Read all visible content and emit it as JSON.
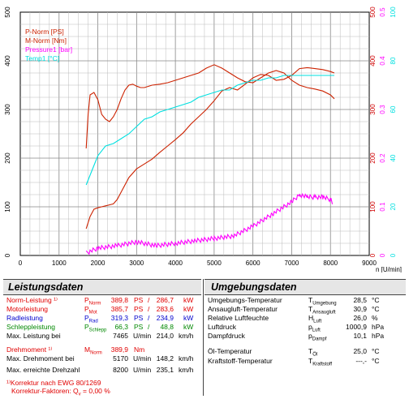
{
  "chart_data": {
    "type": "line",
    "xlim": [
      0,
      9000
    ],
    "xticks": [
      0,
      1000,
      2000,
      3000,
      4000,
      5000,
      6000,
      7000,
      8000,
      9000
    ],
    "xlabel": "n [U/min]",
    "axes": {
      "left": {
        "ticks": [
          0,
          100,
          200,
          300,
          400,
          500
        ],
        "color": "#d00000"
      },
      "right1": {
        "ticks": [
          0,
          100,
          200,
          300,
          400,
          500
        ],
        "color": "#d00000"
      },
      "right2": {
        "ticks": [
          "0",
          "0.1",
          "0.2",
          "0.3",
          "0.4",
          "0.5"
        ],
        "color": "#ff00ff"
      },
      "right3": {
        "ticks": [
          0,
          20,
          40,
          60,
          80,
          100
        ],
        "color": "#00e0e0"
      }
    },
    "legend": [
      "P-Norm [PS]",
      "M-Norm [Nm]",
      "Pressure1 [bar]",
      "Temp1 [°C]"
    ],
    "grid": true,
    "series": [
      {
        "name": "P-Norm [PS]",
        "color": "#cc2200",
        "axis": "left",
        "x": [
          1700,
          1800,
          1900,
          2000,
          2100,
          2200,
          2300,
          2400,
          2500,
          2600,
          2800,
          3000,
          3200,
          3400,
          3600,
          3800,
          4000,
          4200,
          4400,
          4600,
          4800,
          5000,
          5200,
          5400,
          5600,
          5800,
          6000,
          6200,
          6400,
          6600,
          6800,
          7000,
          7200,
          7400,
          7600,
          7800,
          8000,
          8100
        ],
        "y": [
          55,
          80,
          95,
          98,
          100,
          102,
          104,
          106,
          115,
          130,
          160,
          178,
          188,
          198,
          212,
          225,
          238,
          252,
          270,
          285,
          300,
          318,
          338,
          345,
          340,
          352,
          365,
          372,
          370,
          360,
          362,
          370,
          384,
          386,
          384,
          382,
          378,
          375
        ]
      },
      {
        "name": "M-Norm [Nm]",
        "color": "#cc2200",
        "axis": "right1",
        "x": [
          1700,
          1750,
          1800,
          1900,
          2000,
          2100,
          2200,
          2300,
          2400,
          2500,
          2600,
          2700,
          2800,
          2900,
          3000,
          3100,
          3200,
          3400,
          3600,
          3800,
          4000,
          4200,
          4400,
          4600,
          4800,
          5000,
          5200,
          5400,
          5600,
          5800,
          6000,
          6200,
          6400,
          6600,
          6800,
          7000,
          7200,
          7400,
          7600,
          7800,
          8000,
          8100
        ],
        "y": [
          220,
          290,
          330,
          335,
          320,
          290,
          280,
          275,
          285,
          300,
          322,
          340,
          350,
          352,
          348,
          345,
          345,
          350,
          352,
          355,
          360,
          365,
          370,
          375,
          385,
          392,
          385,
          375,
          365,
          357,
          355,
          365,
          375,
          380,
          375,
          360,
          350,
          345,
          342,
          338,
          330,
          322
        ]
      },
      {
        "name": "Pressure1 [bar]",
        "color": "#ff00ff",
        "axis": "right2",
        "x": [
          1700,
          2000,
          2500,
          3000,
          3500,
          4000,
          4500,
          5000,
          5500,
          6000,
          6500,
          7000,
          7200,
          7400,
          7600,
          7800,
          8000,
          8050
        ],
        "y": [
          0.005,
          0.015,
          0.02,
          0.028,
          0.02,
          0.025,
          0.03,
          0.035,
          0.04,
          0.06,
          0.085,
          0.11,
          0.125,
          0.12,
          0.12,
          0.12,
          0.115,
          0.11
        ]
      },
      {
        "name": "Temp1 [°C]",
        "color": "#00e0e0",
        "axis": "right3",
        "x": [
          1700,
          1850,
          2000,
          2200,
          2400,
          2600,
          2800,
          3000,
          3200,
          3400,
          3600,
          3800,
          4000,
          4200,
          4400,
          4600,
          4800,
          5000,
          5200,
          5400,
          5600,
          5800,
          6000,
          6200,
          6400,
          6600,
          6800,
          7000,
          7200,
          7400,
          7600,
          7800,
          8000,
          8100
        ],
        "y": [
          29,
          35,
          41,
          45,
          46,
          48,
          50,
          53,
          56,
          57,
          59,
          60,
          61,
          62,
          63,
          65,
          66,
          67,
          68,
          68,
          70,
          71,
          72,
          72,
          73,
          73,
          74,
          74,
          74,
          74,
          74,
          74,
          74,
          74
        ]
      }
    ]
  },
  "left_table": {
    "title": "Leistungsdaten",
    "rows": [
      {
        "label": "Norm-Leistung ¹⁾",
        "sym": "P",
        "sub": "Norm",
        "v1": "389,8",
        "u1": "PS",
        "v2": "286,7",
        "u2": "kW",
        "color": "red"
      },
      {
        "label": "Motorleistung",
        "sym": "P",
        "sub": "Mot",
        "v1": "385,7",
        "u1": "PS",
        "v2": "283,6",
        "u2": "kW",
        "color": "red"
      },
      {
        "label": "Radleistung",
        "sym": "P",
        "sub": "Rad",
        "v1": "319,3",
        "u1": "PS",
        "v2": "234,9",
        "u2": "kW",
        "color": "blue"
      },
      {
        "label": "Schleppleistung",
        "sym": "P",
        "sub": "Schlepp",
        "v1": "66,3",
        "u1": "PS",
        "v2": "48,8",
        "u2": "kW",
        "color": "green"
      }
    ],
    "max_leistung": {
      "label": "Max. Leistung bei",
      "v1": "7465",
      "u1": "U/min",
      "v2": "214,0",
      "u2": "km/h"
    },
    "drehmoment": {
      "label": "Drehmoment ¹⁾",
      "sym": "M",
      "sub": "Norm",
      "v1": "389,9",
      "u1": "Nm"
    },
    "max_drehmoment": {
      "label": "Max. Drehmoment bei",
      "v1": "5170",
      "u1": "U/min",
      "v2": "148,2",
      "u2": "km/h"
    },
    "max_drehzahl": {
      "label": "Max. erreichte Drehzahl",
      "v1": "8200",
      "u1": "U/min",
      "v2": "235,1",
      "u2": "km/h"
    },
    "korrektur": "¹⁾Korrektur nach EWG 80/1269",
    "korrektur_faktor_label": "Korrektur-Faktoren: Q",
    "korrektur_faktor_sub": "v",
    "korrektur_faktor_value": "=   0,00 %"
  },
  "right_table": {
    "title": "Umgebungsdaten",
    "rows": [
      {
        "label": "Umgebungs-Temperatur",
        "sym": "T",
        "sub": "Umgebung",
        "v": "28,5",
        "u": "°C"
      },
      {
        "label": "Ansaugluft-Temperatur",
        "sym": "T",
        "sub": "Ansaugluft",
        "v": "30,9",
        "u": "°C"
      },
      {
        "label": "Relative Luftfeuchte",
        "sym": "H",
        "sub": "Luft",
        "v": "26,0",
        "u": "%"
      },
      {
        "label": "Luftdruck",
        "sym": "p",
        "sub": "Luft",
        "v": "1000,9",
        "u": "hPa"
      },
      {
        "label": "Dampfdruck",
        "sym": "p",
        "sub": "Dampf",
        "v": "10,1",
        "u": "hPa"
      }
    ],
    "oel": {
      "label": "Öl-Temperatur",
      "sym": "T",
      "sub": "Öl",
      "v": "25,0",
      "u": "°C"
    },
    "kraftstoff": {
      "label": "Kraftstoff-Temperatur",
      "sym": "T",
      "sub": "Kraftstoff",
      "v": "---,-",
      "u": "°C"
    }
  }
}
